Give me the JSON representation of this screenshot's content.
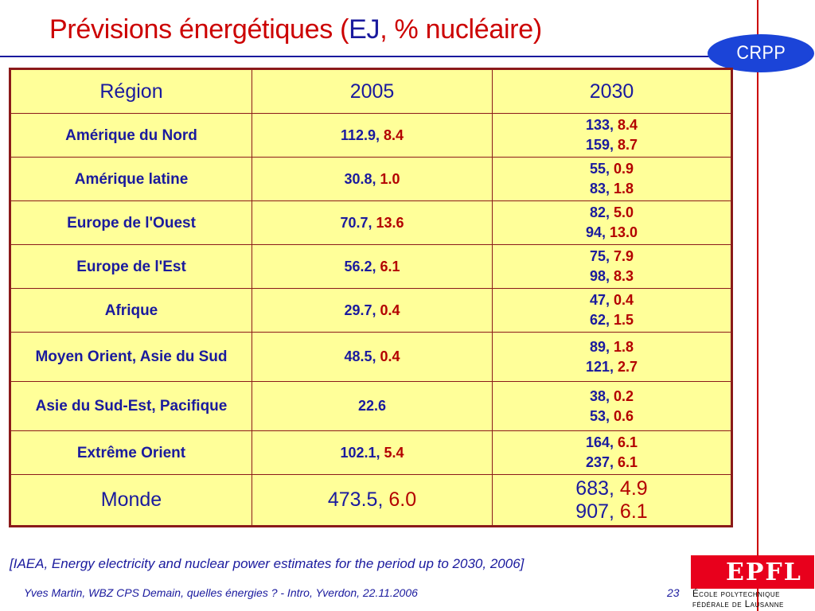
{
  "header": {
    "title_part1": "Prévisions énergétiques (",
    "title_part2": "EJ",
    "title_part3": ", % nucléaire",
    "title_part4": ")"
  },
  "logos": {
    "crpp": "CRPP",
    "epfl": "EPFL",
    "epfl_line1": "École polytechnique",
    "epfl_line2": "fédérale de Lausanne"
  },
  "table": {
    "headers": [
      "Région",
      "2005",
      "2030"
    ],
    "rows": [
      {
        "region": "Amérique du Nord",
        "y2005": {
          "ej": "112.9",
          "pct": "8.4"
        },
        "y2030": [
          {
            "ej": "133",
            "pct": "8.4"
          },
          {
            "ej": "159",
            "pct": "8.7"
          }
        ]
      },
      {
        "region": "Amérique latine",
        "y2005": {
          "ej": "30.8",
          "pct": "1.0"
        },
        "y2030": [
          {
            "ej": "55",
            "pct": "0.9"
          },
          {
            "ej": "83",
            "pct": "1.8"
          }
        ]
      },
      {
        "region": "Europe de l'Ouest",
        "y2005": {
          "ej": "70.7",
          "pct": "13.6"
        },
        "y2030": [
          {
            "ej": "82",
            "pct": "5.0"
          },
          {
            "ej": "94",
            "pct": "13.0"
          }
        ]
      },
      {
        "region": "Europe de l'Est",
        "y2005": {
          "ej": "56.2",
          "pct": "6.1"
        },
        "y2030": [
          {
            "ej": "75",
            "pct": "7.9"
          },
          {
            "ej": "98",
            "pct": "8.3"
          }
        ]
      },
      {
        "region": "Afrique",
        "y2005": {
          "ej": "29.7",
          "pct": "0.4"
        },
        "y2030": [
          {
            "ej": "47",
            "pct": "0.4"
          },
          {
            "ej": "62",
            "pct": "1.5"
          }
        ]
      },
      {
        "region": "Moyen Orient, Asie du Sud",
        "y2005": {
          "ej": "48.5",
          "pct": "0.4"
        },
        "y2030": [
          {
            "ej": "89",
            "pct": "1.8"
          },
          {
            "ej": "121",
            "pct": "2.7"
          }
        ]
      },
      {
        "region": "Asie du Sud-Est, Pacifique",
        "y2005": {
          "ej": "22.6",
          "pct": null
        },
        "y2030": [
          {
            "ej": "38",
            "pct": "0.2"
          },
          {
            "ej": "53",
            "pct": "0.6"
          }
        ]
      },
      {
        "region": "Extrême Orient",
        "y2005": {
          "ej": "102.1",
          "pct": "5.4"
        },
        "y2030": [
          {
            "ej": "164",
            "pct": "6.1"
          },
          {
            "ej": "237",
            "pct": "6.1"
          }
        ]
      },
      {
        "region": "Monde",
        "y2005": {
          "ej": "473.5",
          "pct": "6.0"
        },
        "y2030": [
          {
            "ej": "683",
            "pct": "4.9"
          },
          {
            "ej": "907",
            "pct": "6.1"
          }
        ],
        "world": true
      }
    ]
  },
  "citation": "[IAEA, Energy electricity and nuclear power estimates for the period up to 2030, 2006]",
  "footer": {
    "text": "Yves Martin, WBZ CPS Demain, quelles énergies ? - Intro, Yverdon, 22.11.2006",
    "page_number": "23"
  },
  "colors": {
    "title_red": "#cc0000",
    "text_blue": "#1a1a9e",
    "percent_red": "#b30000",
    "table_bg": "#ffff99",
    "table_border": "#8b1a1a",
    "crpp_blue": "#1b44d8",
    "epfl_red": "#e8001c"
  }
}
